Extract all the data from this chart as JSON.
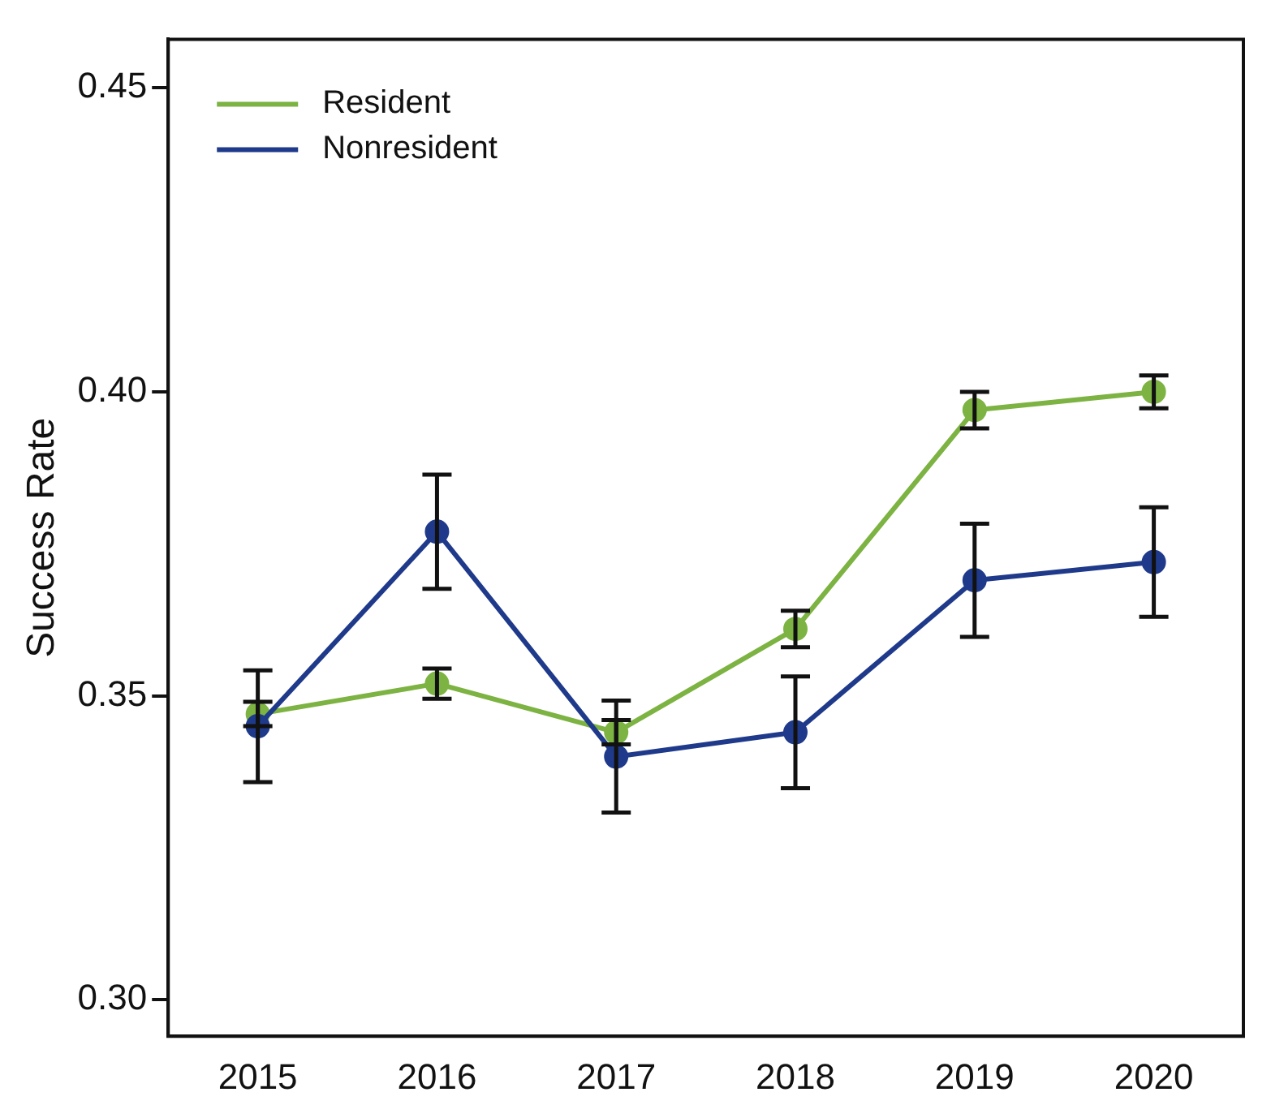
{
  "chart_data": {
    "type": "line",
    "ylabel": "Success Rate",
    "categories": [
      "2015",
      "2016",
      "2017",
      "2018",
      "2019",
      "2020"
    ],
    "series": [
      {
        "name": "Resident",
        "color": "#7cb342",
        "values": [
          0.347,
          0.352,
          0.344,
          0.361,
          0.397,
          0.4
        ],
        "errors": [
          0.002,
          0.0025,
          0.002,
          0.003,
          0.003,
          0.0027
        ]
      },
      {
        "name": "Nonresident",
        "color": "#1f3a8a",
        "values": [
          0.345,
          0.377,
          0.34,
          0.344,
          0.369,
          0.372
        ],
        "errors": [
          0.0092,
          0.0094,
          0.0092,
          0.0092,
          0.0093,
          0.009
        ]
      }
    ],
    "ylim": [
      0.294,
      0.458
    ],
    "yticks": [
      {
        "value": 0.3,
        "label": "0.30"
      },
      {
        "value": 0.35,
        "label": "0.35"
      },
      {
        "value": 0.4,
        "label": "0.40"
      },
      {
        "value": 0.45,
        "label": "0.45"
      }
    ],
    "grid": false,
    "legend": "top left",
    "marker": "circle",
    "line_style": "solid"
  }
}
